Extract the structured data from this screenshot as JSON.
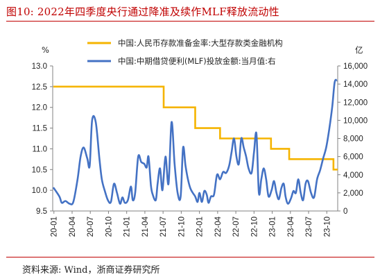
{
  "figure": {
    "title": "图10:  2022年四季度央行通过降准及续作MLF释放流动性",
    "source": "资料来源:  Wind，浙商证券研究所"
  },
  "chart_data": {
    "type": "line",
    "left_unit": "%",
    "right_unit": "亿",
    "left_axis": {
      "min": 9.5,
      "max": 13.0,
      "ticks": [
        "9.5",
        "10.0",
        "10.5",
        "11.0",
        "11.5",
        "12.0",
        "12.5",
        "13.0"
      ]
    },
    "right_axis": {
      "min": 0,
      "max": 16000,
      "ticks": [
        "0",
        "2,000",
        "4,000",
        "6,000",
        "8,000",
        "10,000",
        "12,000",
        "14,000",
        "16,000"
      ]
    },
    "x_labels": [
      "20-01",
      "20-04",
      "20-07",
      "20-10",
      "21-01",
      "21-04",
      "21-07",
      "21-10",
      "22-01",
      "22-04",
      "22-07",
      "22-10",
      "23-01",
      "23-04",
      "23-07",
      "23-10"
    ],
    "colors": {
      "rrr": "#f5b400",
      "mlf": "#4472c4"
    },
    "series": [
      {
        "name": "中国:人民币存款准备金率:大型存款类金融机构",
        "axis": "left",
        "shape": "step",
        "points": [
          {
            "x": 0,
            "y": 12.5
          },
          {
            "x": 18.2,
            "y": 12.0
          },
          {
            "x": 23.4,
            "y": 11.5
          },
          {
            "x": 27.5,
            "y": 11.25
          },
          {
            "x": 35.9,
            "y": 11.0
          },
          {
            "x": 38.9,
            "y": 10.75
          },
          {
            "x": 46.2,
            "y": 10.5
          },
          {
            "x": 46.9,
            "y": 10.5
          }
        ]
      },
      {
        "name": "中国:中期借贷便利(MLF)投放金额:当月值:右",
        "axis": "right",
        "shape": "line",
        "values": [
          2600,
          800,
          1000,
          5600,
          9000,
          5200,
          3000,
          8200,
          2000,
          1000,
          2000,
          5200,
          10000,
          6000,
          4500,
          2300,
          2000,
          8000,
          3800,
          5200,
          4500,
          3600,
          2000,
          3500,
          2500,
          4500,
          6000,
          8500,
          6000,
          3000,
          1500,
          1000,
          2000,
          4000,
          5000,
          6500,
          7000,
          8500,
          9500,
          11500,
          14500
        ],
        "custom": [
          [
            0,
            2600
          ],
          [
            1,
            1600
          ],
          [
            1.4,
            900
          ],
          [
            2,
            1100
          ],
          [
            2.7,
            800
          ],
          [
            3.3,
            1000
          ],
          [
            4,
            3500
          ],
          [
            4.5,
            6000
          ],
          [
            5,
            7000
          ],
          [
            5.6,
            5800
          ],
          [
            6,
            5000
          ],
          [
            6.4,
            10000
          ],
          [
            7,
            9800
          ],
          [
            7.6,
            5800
          ],
          [
            8,
            3500
          ],
          [
            8.5,
            2200
          ],
          [
            9,
            1200
          ],
          [
            9.5,
            1000
          ],
          [
            10,
            3000
          ],
          [
            10.5,
            2000
          ],
          [
            11,
            800
          ],
          [
            11.4,
            1500
          ],
          [
            11.8,
            900
          ],
          [
            12.3,
            1200
          ],
          [
            12.8,
            2700
          ],
          [
            13.1,
            1200
          ],
          [
            13.5,
            2000
          ],
          [
            14,
            6000
          ],
          [
            14.5,
            5400
          ],
          [
            15,
            5200
          ],
          [
            15.4,
            4800
          ],
          [
            15.7,
            6000
          ],
          [
            16.1,
            2800
          ],
          [
            16.4,
            1800
          ],
          [
            16.9,
            1200
          ],
          [
            17.2,
            3000
          ],
          [
            17.6,
            4700
          ],
          [
            18,
            2300
          ],
          [
            18.5,
            6000
          ],
          [
            19,
            3000
          ],
          [
            19.5,
            9800
          ],
          [
            20,
            5200
          ],
          [
            20.5,
            2000
          ],
          [
            21,
            1600
          ],
          [
            21.4,
            7000
          ],
          [
            21.8,
            5000
          ],
          [
            22.2,
            3500
          ],
          [
            22.6,
            2500
          ],
          [
            23,
            2000
          ],
          [
            23.4,
            1600
          ],
          [
            23.8,
            1000
          ],
          [
            24.1,
            2000
          ],
          [
            24.5,
            1000
          ],
          [
            24.9,
            2200
          ],
          [
            25.3,
            1800
          ],
          [
            25.6,
            900
          ],
          [
            26,
            1600
          ],
          [
            26.5,
            1800
          ],
          [
            27,
            4000
          ],
          [
            27.5,
            3500
          ],
          [
            28,
            4300
          ],
          [
            28.5,
            4200
          ],
          [
            29,
            5000
          ],
          [
            29.4,
            6500
          ],
          [
            29.8,
            8000
          ],
          [
            30.2,
            6000
          ],
          [
            30.6,
            5200
          ],
          [
            31,
            8000
          ],
          [
            31.4,
            7000
          ],
          [
            31.8,
            6000
          ],
          [
            32.2,
            4700
          ],
          [
            32.7,
            4200
          ],
          [
            33.1,
            6500
          ],
          [
            33.5,
            8500
          ],
          [
            33.9,
            2000
          ],
          [
            34.3,
            3500
          ],
          [
            34.7,
            4700
          ],
          [
            35.1,
            3500
          ],
          [
            35.5,
            1600
          ],
          [
            36,
            2300
          ],
          [
            36.4,
            3300
          ],
          [
            36.8,
            2000
          ],
          [
            37.2,
            1300
          ],
          [
            37.6,
            2500
          ],
          [
            38,
            3000
          ],
          [
            38.3,
            1600
          ],
          [
            38.7,
            800
          ],
          [
            39.2,
            1400
          ],
          [
            39.6,
            2200
          ],
          [
            40,
            2000
          ],
          [
            40.4,
            3500
          ],
          [
            40.8,
            2000
          ],
          [
            41.2,
            1200
          ],
          [
            41.6,
            3000
          ],
          [
            42,
            3300
          ],
          [
            42.5,
            2000
          ],
          [
            43,
            1500
          ],
          [
            43.5,
            3500
          ],
          [
            44,
            4500
          ],
          [
            44.5,
            5800
          ],
          [
            45,
            7000
          ],
          [
            45.5,
            9000
          ],
          [
            46,
            11500
          ],
          [
            46.4,
            14200
          ],
          [
            46.8,
            14400
          ]
        ]
      }
    ]
  }
}
